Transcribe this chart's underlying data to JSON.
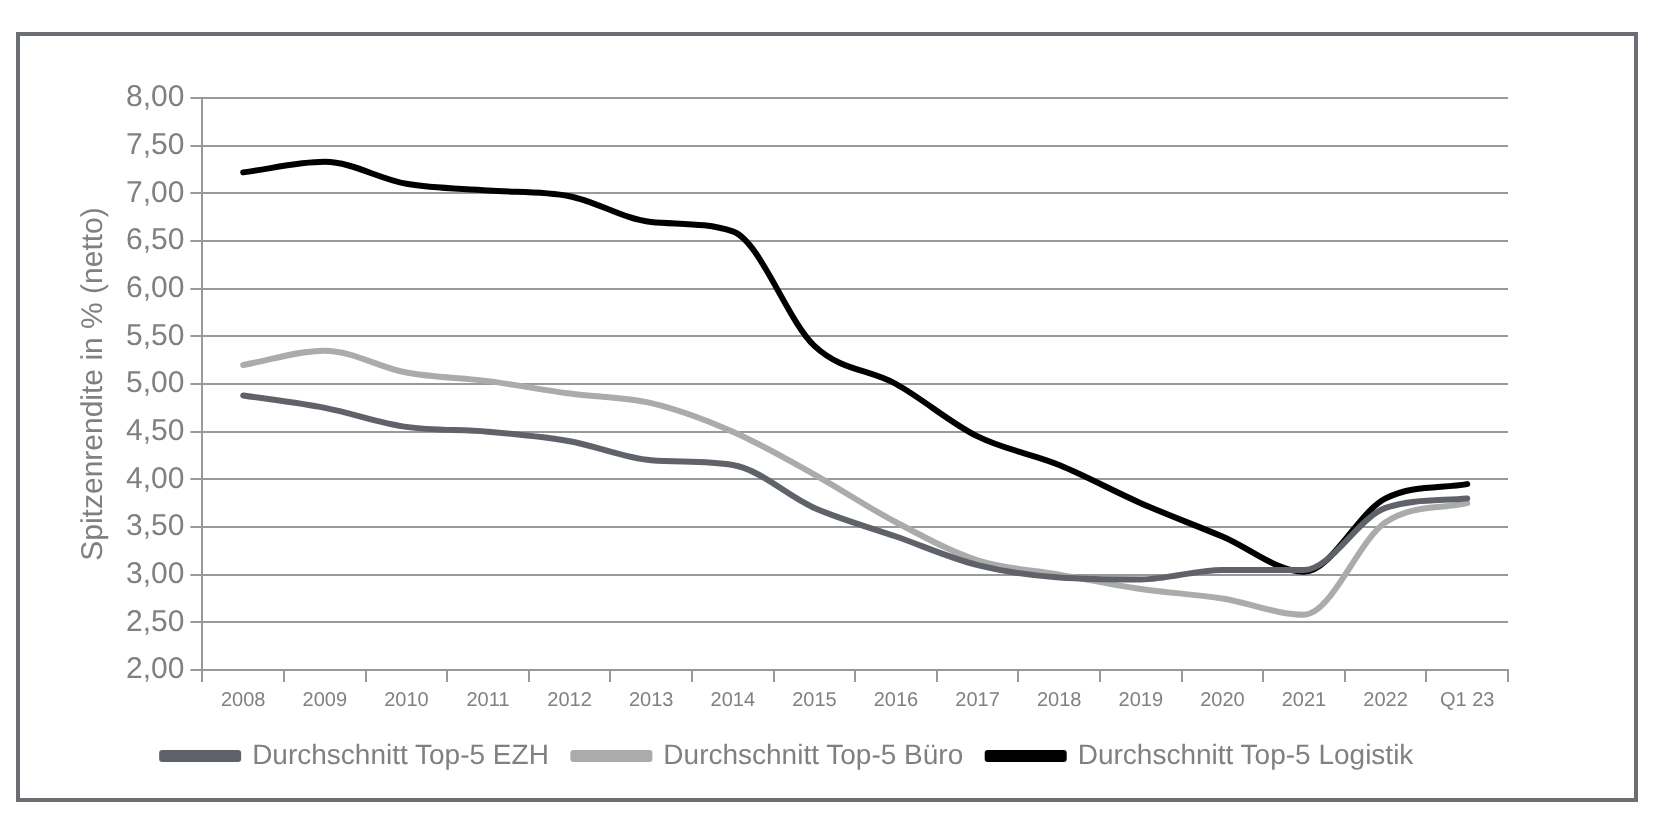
{
  "chart_data": {
    "type": "line",
    "ylabel": "Spitzenrendite in % (netto)",
    "categories": [
      "2008",
      "2009",
      "2010",
      "2011",
      "2012",
      "2013",
      "2014",
      "2015",
      "2016",
      "2017",
      "2018",
      "2019",
      "2020",
      "2021",
      "2022",
      "Q1 23"
    ],
    "series": [
      {
        "name": "Durchschnitt Top-5 EZH",
        "color": "#5f6369",
        "values": [
          4.88,
          4.75,
          4.55,
          4.5,
          4.4,
          4.2,
          4.15,
          3.7,
          3.4,
          3.1,
          2.97,
          2.95,
          3.05,
          3.05,
          3.7,
          3.8
        ]
      },
      {
        "name": "Durchschnitt Top-5 Büro",
        "color": "#ababab",
        "values": [
          5.2,
          5.35,
          5.12,
          5.03,
          4.9,
          4.8,
          4.5,
          4.05,
          3.55,
          3.15,
          3.0,
          2.85,
          2.75,
          2.58,
          3.55,
          3.75
        ]
      },
      {
        "name": "Durchschnitt Top-5 Logistik",
        "color": "#000000",
        "values": [
          7.22,
          7.33,
          7.1,
          7.03,
          6.97,
          6.7,
          6.6,
          5.4,
          5.0,
          4.45,
          4.15,
          3.75,
          3.4,
          3.03,
          3.8,
          3.95
        ]
      }
    ],
    "ylim": [
      2,
      8
    ],
    "yticks": [
      {
        "value": 2,
        "label": "2,00"
      },
      {
        "value": 2.5,
        "label": "2,50"
      },
      {
        "value": 3,
        "label": "3,00"
      },
      {
        "value": 3.5,
        "label": "3,50"
      },
      {
        "value": 4,
        "label": "4,00"
      },
      {
        "value": 4.5,
        "label": "4,50"
      },
      {
        "value": 5,
        "label": "5,00"
      },
      {
        "value": 5.5,
        "label": "5,50"
      },
      {
        "value": 6,
        "label": "6,00"
      },
      {
        "value": 6.5,
        "label": "6,50"
      },
      {
        "value": 7,
        "label": "7,00"
      },
      {
        "value": 7.5,
        "label": "7,50"
      },
      {
        "value": 8,
        "label": "8,00"
      }
    ],
    "grid": "y",
    "legend": "bottom",
    "marker": "none",
    "line_style": "solid"
  }
}
